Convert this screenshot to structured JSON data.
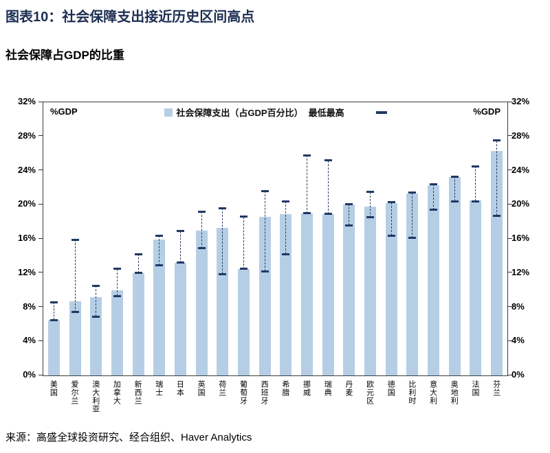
{
  "header": {
    "title": "图表10：社会保障支出接近历史区间高点",
    "subtitle": "社会保障占GDP的比重"
  },
  "legend": {
    "bar_label": "社会保障支出（占GDP百分比）",
    "range_label": "最低最高"
  },
  "axis": {
    "unit_label": "%GDP",
    "ticks": [
      "0%",
      "4%",
      "8%",
      "12%",
      "16%",
      "20%",
      "24%",
      "28%",
      "32%"
    ],
    "tick_step": 4
  },
  "colors": {
    "bar_fill": "#b5cee5",
    "range_marker": "#1f3864",
    "title_text": "#1c2e52"
  },
  "chart_data": {
    "type": "bar",
    "title": "社会保障占GDP的比重",
    "xlabel": "",
    "ylabel": "%GDP",
    "ylim": [
      0,
      32
    ],
    "grid": false,
    "legend_position": "top",
    "categories": [
      "美国",
      "爱尔兰",
      "澳大利亚",
      "加拿大",
      "新西兰",
      "瑞士",
      "日本",
      "英国",
      "荷兰",
      "葡萄牙",
      "西班牙",
      "希腊",
      "挪威",
      "瑞典",
      "丹麦",
      "欧元区",
      "德国",
      "比利时",
      "意大利",
      "奥地利",
      "法国",
      "芬兰"
    ],
    "series": [
      {
        "name": "社会保障支出（占GDP百分比）",
        "values": [
          6.5,
          8.7,
          9.2,
          10.0,
          12.0,
          15.9,
          13.2,
          17.0,
          17.3,
          12.5,
          18.6,
          18.9,
          19.0,
          18.9,
          20.0,
          19.8,
          20.2,
          21.3,
          22.3,
          23.2,
          20.5,
          26.3
        ]
      },
      {
        "name": "最低",
        "values": [
          6.5,
          7.4,
          6.9,
          9.3,
          12.0,
          12.9,
          13.2,
          14.9,
          11.9,
          12.5,
          12.2,
          14.2,
          19.0,
          18.9,
          17.6,
          18.5,
          16.4,
          16.1,
          19.4,
          20.4,
          20.4,
          18.7
        ]
      },
      {
        "name": "最高",
        "values": [
          8.6,
          15.9,
          10.5,
          12.5,
          14.2,
          16.4,
          16.9,
          19.2,
          19.6,
          18.6,
          21.6,
          20.4,
          25.8,
          25.2,
          20.1,
          21.5,
          20.3,
          21.4,
          22.4,
          23.3,
          24.5,
          27.5
        ]
      }
    ]
  },
  "footer": {
    "source": "来源：高盛全球投资研究、经合组织、Haver Analytics"
  }
}
